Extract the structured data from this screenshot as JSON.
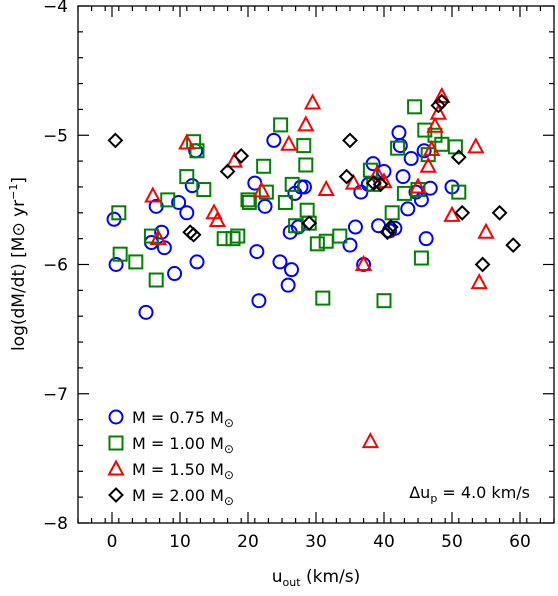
{
  "chart_data": {
    "type": "scatter",
    "xlabel": "u_out (km/s)",
    "xlabel_parts": {
      "main": "u",
      "sub": "out",
      "rest": " (km/s)"
    },
    "ylabel": "log(dM/dt) [M⊙ yr⁻¹]",
    "ylabel_parts": {
      "main": "log(dM/dt) [M",
      "sun": "⊙",
      "mid": " yr",
      "sup": "−1",
      "end": "]"
    },
    "xlim": [
      -5,
      65
    ],
    "ylim": [
      -8,
      -4
    ],
    "xticks": [
      0,
      10,
      20,
      30,
      40,
      50,
      60
    ],
    "yticks": [
      -8,
      -7,
      -6,
      -5,
      -4
    ],
    "xtick_labels": [
      "0",
      "10",
      "20",
      "30",
      "40",
      "50",
      "60"
    ],
    "ytick_labels": [
      "−8",
      "−7",
      "−6",
      "−5",
      "−4"
    ],
    "grid": false,
    "legend_position": "bottom-left",
    "annotation": {
      "prefix": "Δu",
      "sub": "p",
      "suffix": " = 4.0 km/s"
    },
    "series": [
      {
        "name": "M = 0.75 M⊙",
        "label_parts": {
          "text": "M = 0.75 M",
          "sun": "⊙"
        },
        "marker": "circle",
        "color": "#0000ff",
        "points": [
          [
            0.3,
            -5.65
          ],
          [
            0.6,
            -6.0
          ],
          [
            5.0,
            -6.37
          ],
          [
            5.8,
            -5.83
          ],
          [
            6.5,
            -5.55
          ],
          [
            7.3,
            -5.75
          ],
          [
            7.7,
            -5.87
          ],
          [
            9.2,
            -6.07
          ],
          [
            9.8,
            -5.52
          ],
          [
            11.0,
            -5.6
          ],
          [
            11.8,
            -5.39
          ],
          [
            12.3,
            -5.12
          ],
          [
            12.5,
            -5.98
          ],
          [
            21.0,
            -5.37
          ],
          [
            21.3,
            -5.9
          ],
          [
            21.6,
            -6.28
          ],
          [
            22.5,
            -5.55
          ],
          [
            23.8,
            -5.04
          ],
          [
            24.7,
            -5.98
          ],
          [
            25.9,
            -6.16
          ],
          [
            26.2,
            -5.75
          ],
          [
            26.4,
            -6.04
          ],
          [
            26.9,
            -5.45
          ],
          [
            27.4,
            -5.71
          ],
          [
            27.8,
            -5.4
          ],
          [
            28.3,
            -5.4
          ],
          [
            35.0,
            -5.85
          ],
          [
            35.8,
            -5.71
          ],
          [
            36.6,
            -5.44
          ],
          [
            37.0,
            -6.0
          ],
          [
            37.7,
            -5.38
          ],
          [
            38.4,
            -5.22
          ],
          [
            39.2,
            -5.7
          ],
          [
            40.0,
            -5.28
          ],
          [
            40.8,
            -5.74
          ],
          [
            41.6,
            -5.72
          ],
          [
            42.2,
            -4.98
          ],
          [
            42.4,
            -5.08
          ],
          [
            42.8,
            -5.32
          ],
          [
            43.5,
            -5.57
          ],
          [
            44.0,
            -5.18
          ],
          [
            44.7,
            -5.44
          ],
          [
            45.5,
            -5.5
          ],
          [
            45.9,
            -5.12
          ],
          [
            46.2,
            -5.8
          ],
          [
            46.8,
            -5.41
          ],
          [
            50.0,
            -5.4
          ]
        ]
      },
      {
        "name": "M = 1.00 M⊙",
        "label_parts": {
          "text": "M = 1.00 M",
          "sun": "⊙"
        },
        "marker": "square",
        "color": "#008000",
        "points": [
          [
            1.0,
            -5.6
          ],
          [
            1.2,
            -5.92
          ],
          [
            3.5,
            -5.98
          ],
          [
            5.8,
            -5.78
          ],
          [
            6.5,
            -6.12
          ],
          [
            8.2,
            -5.5
          ],
          [
            11.0,
            -5.32
          ],
          [
            12.0,
            -5.05
          ],
          [
            12.5,
            -5.12
          ],
          [
            13.5,
            -5.42
          ],
          [
            16.5,
            -5.8
          ],
          [
            17.8,
            -5.8
          ],
          [
            18.5,
            -5.78
          ],
          [
            20.0,
            -5.5
          ],
          [
            20.2,
            -5.52
          ],
          [
            22.3,
            -5.24
          ],
          [
            22.7,
            -5.44
          ],
          [
            24.8,
            -4.92
          ],
          [
            25.5,
            -5.52
          ],
          [
            26.5,
            -5.38
          ],
          [
            27.0,
            -5.7
          ],
          [
            28.2,
            -5.08
          ],
          [
            28.5,
            -5.23
          ],
          [
            28.7,
            -5.58
          ],
          [
            29.0,
            -5.68
          ],
          [
            30.2,
            -5.84
          ],
          [
            31.0,
            -6.26
          ],
          [
            31.5,
            -5.82
          ],
          [
            33.5,
            -5.78
          ],
          [
            38.0,
            -5.27
          ],
          [
            38.5,
            -5.38
          ],
          [
            40.0,
            -6.28
          ],
          [
            41.2,
            -5.6
          ],
          [
            42.0,
            -5.1
          ],
          [
            43.0,
            -5.45
          ],
          [
            44.5,
            -4.78
          ],
          [
            45.0,
            -5.42
          ],
          [
            45.5,
            -5.95
          ],
          [
            46.0,
            -4.96
          ],
          [
            46.5,
            -5.15
          ],
          [
            47.5,
            -5.0
          ],
          [
            48.5,
            -5.07
          ],
          [
            50.5,
            -5.09
          ],
          [
            51.0,
            -5.44
          ]
        ]
      },
      {
        "name": "M = 1.50 M⊙",
        "label_parts": {
          "text": "M = 1.50 M",
          "sun": "⊙"
        },
        "marker": "triangle",
        "color": "#ff0000",
        "points": [
          [
            6.0,
            -5.47
          ],
          [
            6.8,
            -5.8
          ],
          [
            11.0,
            -5.06
          ],
          [
            15.0,
            -5.6
          ],
          [
            15.5,
            -5.66
          ],
          [
            18.0,
            -5.2
          ],
          [
            22.0,
            -5.43
          ],
          [
            26.0,
            -5.07
          ],
          [
            28.5,
            -4.92
          ],
          [
            29.5,
            -4.75
          ],
          [
            31.5,
            -5.42
          ],
          [
            35.5,
            -5.37
          ],
          [
            37.0,
            -6.0
          ],
          [
            38.0,
            -7.37
          ],
          [
            39.0,
            -5.3
          ],
          [
            40.0,
            -5.36
          ],
          [
            45.0,
            -5.4
          ],
          [
            46.5,
            -5.24
          ],
          [
            47.0,
            -5.11
          ],
          [
            47.5,
            -4.93
          ],
          [
            48.0,
            -4.83
          ],
          [
            48.5,
            -4.7
          ],
          [
            50.0,
            -5.62
          ],
          [
            53.5,
            -5.09
          ],
          [
            54.0,
            -6.14
          ],
          [
            55.0,
            -5.75
          ]
        ]
      },
      {
        "name": "M = 2.00 M⊙",
        "label_parts": {
          "text": "M = 2.00 M",
          "sun": "⊙"
        },
        "marker": "diamond",
        "color": "#000000",
        "points": [
          [
            0.5,
            -5.04
          ],
          [
            11.5,
            -5.75
          ],
          [
            12.0,
            -5.77
          ],
          [
            17.0,
            -5.28
          ],
          [
            19.0,
            -5.16
          ],
          [
            29.0,
            -5.68
          ],
          [
            34.5,
            -5.32
          ],
          [
            35.0,
            -5.04
          ],
          [
            38.5,
            -5.37
          ],
          [
            39.5,
            -5.38
          ],
          [
            40.5,
            -5.75
          ],
          [
            41.0,
            -5.71
          ],
          [
            48.0,
            -4.77
          ],
          [
            48.5,
            -4.74
          ],
          [
            51.0,
            -5.17
          ],
          [
            51.5,
            -5.6
          ],
          [
            54.5,
            -6.0
          ],
          [
            57.0,
            -5.6
          ],
          [
            59.0,
            -5.85
          ]
        ]
      }
    ]
  }
}
